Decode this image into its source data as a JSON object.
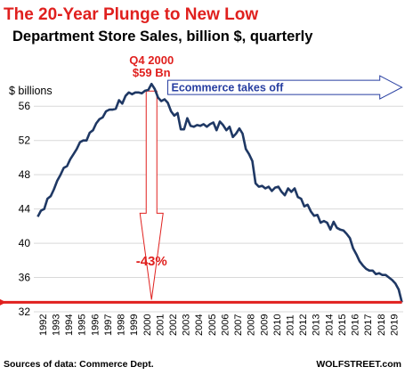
{
  "title": "The 20-Year Plunge to New Low",
  "subtitle": "Department Store Sales, billion $, quarterly",
  "source": "Sources of data: Commerce Dept.",
  "brand": "WOLFSTREET.com",
  "colors": {
    "title": "#e0201e",
    "line": "#1f3864",
    "accent_red": "#e0201e",
    "ecommerce_text": "#283fa1",
    "grid": "#d9d9d9"
  },
  "annotations": {
    "peak_line1": "Q4 2000",
    "peak_line2": "$59 Bn",
    "drop": "-43%",
    "ecommerce": "Ecommerce takes off"
  },
  "chart_data": {
    "type": "line",
    "title": "Department Store Sales, billion $, quarterly",
    "ylabel": "$ billions",
    "xlabel": "",
    "ylim": [
      32,
      58
    ],
    "xlim": [
      1991.7,
      2020.1
    ],
    "yticks": [
      32,
      36,
      40,
      44,
      48,
      52,
      56
    ],
    "xticks": [
      "1992",
      "1993",
      "1994",
      "1995",
      "1996",
      "1997",
      "1998",
      "1999",
      "2000",
      "2001",
      "2002",
      "2003",
      "2004",
      "2005",
      "2006",
      "2007",
      "2008",
      "2009",
      "2010",
      "2011",
      "2012",
      "2013",
      "2014",
      "2015",
      "2016",
      "2017",
      "2018",
      "2019"
    ],
    "grid": true,
    "series": [
      {
        "values": [
          [
            1992.0,
            43.1
          ],
          [
            1992.25,
            43.8
          ],
          [
            1992.5,
            44.0
          ],
          [
            1992.75,
            45.2
          ],
          [
            1993.0,
            45.5
          ],
          [
            1993.25,
            46.3
          ],
          [
            1993.5,
            47.3
          ],
          [
            1993.75,
            48.0
          ],
          [
            1994.0,
            48.8
          ],
          [
            1994.25,
            49.0
          ],
          [
            1994.5,
            49.8
          ],
          [
            1994.75,
            50.4
          ],
          [
            1995.0,
            51.0
          ],
          [
            1995.25,
            51.8
          ],
          [
            1995.5,
            52.0
          ],
          [
            1995.75,
            52.0
          ],
          [
            1996.0,
            52.9
          ],
          [
            1996.25,
            53.2
          ],
          [
            1996.5,
            54.0
          ],
          [
            1996.75,
            54.5
          ],
          [
            1997.0,
            54.7
          ],
          [
            1997.25,
            55.4
          ],
          [
            1997.5,
            55.6
          ],
          [
            1997.75,
            55.6
          ],
          [
            1998.0,
            55.7
          ],
          [
            1998.25,
            56.7
          ],
          [
            1998.5,
            56.3
          ],
          [
            1998.75,
            57.2
          ],
          [
            1999.0,
            57.6
          ],
          [
            1999.25,
            57.4
          ],
          [
            1999.5,
            57.6
          ],
          [
            1999.75,
            57.6
          ],
          [
            2000.0,
            57.5
          ],
          [
            2000.25,
            57.8
          ],
          [
            2000.5,
            57.9
          ],
          [
            2000.75,
            58.6
          ],
          [
            2001.0,
            58.0
          ],
          [
            2001.25,
            57.0
          ],
          [
            2001.5,
            56.6
          ],
          [
            2001.75,
            56.8
          ],
          [
            2002.0,
            56.4
          ],
          [
            2002.25,
            55.4
          ],
          [
            2002.5,
            54.9
          ],
          [
            2002.75,
            55.2
          ],
          [
            2003.0,
            53.3
          ],
          [
            2003.25,
            53.3
          ],
          [
            2003.5,
            54.6
          ],
          [
            2003.75,
            53.7
          ],
          [
            2004.0,
            53.6
          ],
          [
            2004.25,
            53.8
          ],
          [
            2004.5,
            53.7
          ],
          [
            2004.75,
            53.9
          ],
          [
            2005.0,
            53.6
          ],
          [
            2005.25,
            53.9
          ],
          [
            2005.5,
            54.1
          ],
          [
            2005.75,
            53.2
          ],
          [
            2006.0,
            54.2
          ],
          [
            2006.25,
            53.8
          ],
          [
            2006.5,
            53.2
          ],
          [
            2006.75,
            53.6
          ],
          [
            2007.0,
            52.4
          ],
          [
            2007.25,
            52.8
          ],
          [
            2007.5,
            53.4
          ],
          [
            2007.75,
            52.8
          ],
          [
            2008.0,
            51.0
          ],
          [
            2008.25,
            50.4
          ],
          [
            2008.5,
            49.6
          ],
          [
            2008.75,
            47.0
          ],
          [
            2009.0,
            46.6
          ],
          [
            2009.25,
            46.7
          ],
          [
            2009.5,
            46.4
          ],
          [
            2009.75,
            46.6
          ],
          [
            2010.0,
            46.1
          ],
          [
            2010.25,
            46.5
          ],
          [
            2010.5,
            46.6
          ],
          [
            2010.75,
            46.0
          ],
          [
            2011.0,
            45.6
          ],
          [
            2011.25,
            46.4
          ],
          [
            2011.5,
            46.0
          ],
          [
            2011.75,
            46.4
          ],
          [
            2012.0,
            45.4
          ],
          [
            2012.25,
            45.2
          ],
          [
            2012.5,
            44.3
          ],
          [
            2012.75,
            44.5
          ],
          [
            2013.0,
            43.7
          ],
          [
            2013.25,
            43.2
          ],
          [
            2013.5,
            43.3
          ],
          [
            2013.75,
            42.4
          ],
          [
            2014.0,
            42.6
          ],
          [
            2014.25,
            42.4
          ],
          [
            2014.5,
            41.6
          ],
          [
            2014.75,
            42.5
          ],
          [
            2015.0,
            41.8
          ],
          [
            2015.25,
            41.6
          ],
          [
            2015.5,
            41.5
          ],
          [
            2015.75,
            41.1
          ],
          [
            2016.0,
            40.6
          ],
          [
            2016.25,
            39.4
          ],
          [
            2016.5,
            38.7
          ],
          [
            2016.75,
            37.9
          ],
          [
            2017.0,
            37.4
          ],
          [
            2017.25,
            37.0
          ],
          [
            2017.5,
            36.8
          ],
          [
            2017.75,
            36.8
          ],
          [
            2018.0,
            36.4
          ],
          [
            2018.25,
            36.5
          ],
          [
            2018.5,
            36.3
          ],
          [
            2018.75,
            36.3
          ],
          [
            2019.0,
            36.0
          ],
          [
            2019.25,
            35.7
          ],
          [
            2019.5,
            35.3
          ],
          [
            2019.75,
            34.6
          ],
          [
            2020.0,
            33.1
          ]
        ]
      }
    ],
    "peak": {
      "x": 2000.75,
      "y": 58.6
    },
    "new_low_line": 33.1
  }
}
